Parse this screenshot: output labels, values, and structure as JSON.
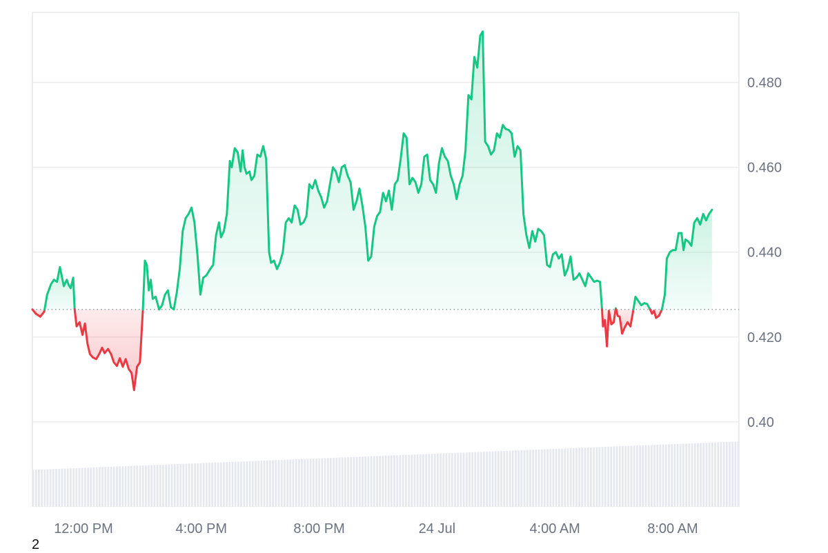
{
  "footer_note": "2",
  "colors": {
    "up_line": "#16c784",
    "down_line": "#ea3943",
    "up_fill": "#16c784",
    "down_fill": "#ea3943",
    "grid": "#ececec",
    "frame": "#e5e7eb",
    "baseline": "#8a8f98",
    "volume": "#e5e9ef",
    "tick_text": "#6b7280"
  },
  "chart_data": {
    "type": "area",
    "title": "",
    "xlabel": "",
    "ylabel": "",
    "baseline_value": 0.4265,
    "y_axis": {
      "range": [
        0.38,
        0.4965
      ],
      "ticks": [
        {
          "value": 0.48,
          "label": "0.480"
        },
        {
          "value": 0.46,
          "label": "0.460"
        },
        {
          "value": 0.44,
          "label": "0.440"
        },
        {
          "value": 0.42,
          "label": "0.420"
        },
        {
          "value": 0.4,
          "label": "0.40"
        }
      ]
    },
    "x_axis": {
      "range": [
        "23 Jul 10:56 AM",
        "24 Jul 10:55 AM"
      ],
      "range_minutes": [
        -104,
        1335
      ],
      "ticks": [
        {
          "minutes": 0,
          "label": "12:00 PM"
        },
        {
          "minutes": 240,
          "label": "4:00 PM"
        },
        {
          "minutes": 480,
          "label": "8:00 PM"
        },
        {
          "minutes": 720,
          "label": "24 Jul"
        },
        {
          "minutes": 960,
          "label": "4:00 AM"
        },
        {
          "minutes": 1200,
          "label": "8:00 AM"
        }
      ]
    },
    "grid": "horizontal",
    "legend": "none",
    "series": [
      {
        "points": [
          [
            -104,
            0.4265
          ],
          [
            -97,
            0.4255
          ],
          [
            -88,
            0.4248
          ],
          [
            -80,
            0.426
          ],
          [
            -74,
            0.43
          ],
          [
            -66,
            0.4325
          ],
          [
            -60,
            0.4335
          ],
          [
            -54,
            0.433
          ],
          [
            -48,
            0.4365
          ],
          [
            -40,
            0.432
          ],
          [
            -34,
            0.4335
          ],
          [
            -30,
            0.4322
          ],
          [
            -26,
            0.4315
          ],
          [
            -21,
            0.434
          ],
          [
            -18,
            0.4265
          ],
          [
            -14,
            0.4225
          ],
          [
            -8,
            0.4235
          ],
          [
            -2,
            0.4205
          ],
          [
            3,
            0.4232
          ],
          [
            8,
            0.4185
          ],
          [
            13,
            0.416
          ],
          [
            19,
            0.4152
          ],
          [
            26,
            0.4148
          ],
          [
            32,
            0.416
          ],
          [
            38,
            0.4175
          ],
          [
            43,
            0.4162
          ],
          [
            50,
            0.4172
          ],
          [
            56,
            0.416
          ],
          [
            62,
            0.414
          ],
          [
            68,
            0.4132
          ],
          [
            74,
            0.415
          ],
          [
            80,
            0.413
          ],
          [
            86,
            0.4148
          ],
          [
            92,
            0.4125
          ],
          [
            98,
            0.4115
          ],
          [
            103,
            0.4075
          ],
          [
            109,
            0.413
          ],
          [
            115,
            0.414
          ],
          [
            121,
            0.4265
          ],
          [
            125,
            0.438
          ],
          [
            129,
            0.437
          ],
          [
            133,
            0.431
          ],
          [
            137,
            0.4335
          ],
          [
            141,
            0.429
          ],
          [
            147,
            0.4295
          ],
          [
            154,
            0.4265
          ],
          [
            160,
            0.4275
          ],
          [
            166,
            0.43
          ],
          [
            172,
            0.431
          ],
          [
            178,
            0.427
          ],
          [
            184,
            0.4265
          ],
          [
            190,
            0.4305
          ],
          [
            196,
            0.436
          ],
          [
            202,
            0.445
          ],
          [
            208,
            0.448
          ],
          [
            214,
            0.449
          ],
          [
            220,
            0.4505
          ],
          [
            226,
            0.447
          ],
          [
            232,
            0.4395
          ],
          [
            238,
            0.43
          ],
          [
            244,
            0.434
          ],
          [
            250,
            0.4345
          ],
          [
            258,
            0.436
          ],
          [
            264,
            0.437
          ],
          [
            270,
            0.444
          ],
          [
            276,
            0.447
          ],
          [
            280,
            0.4435
          ],
          [
            286,
            0.445
          ],
          [
            292,
            0.449
          ],
          [
            298,
            0.4615
          ],
          [
            302,
            0.46
          ],
          [
            308,
            0.4645
          ],
          [
            314,
            0.4635
          ],
          [
            320,
            0.459
          ],
          [
            324,
            0.464
          ],
          [
            328,
            0.46
          ],
          [
            332,
            0.4585
          ],
          [
            338,
            0.459
          ],
          [
            342,
            0.457
          ],
          [
            348,
            0.458
          ],
          [
            354,
            0.463
          ],
          [
            360,
            0.4625
          ],
          [
            366,
            0.465
          ],
          [
            372,
            0.462
          ],
          [
            378,
            0.44
          ],
          [
            382,
            0.4375
          ],
          [
            388,
            0.438
          ],
          [
            394,
            0.436
          ],
          [
            400,
            0.4375
          ],
          [
            406,
            0.44
          ],
          [
            412,
            0.447
          ],
          [
            418,
            0.448
          ],
          [
            424,
            0.447
          ],
          [
            430,
            0.451
          ],
          [
            436,
            0.45
          ],
          [
            442,
            0.4465
          ],
          [
            448,
            0.447
          ],
          [
            454,
            0.4485
          ],
          [
            460,
            0.456
          ],
          [
            466,
            0.455
          ],
          [
            472,
            0.457
          ],
          [
            478,
            0.4545
          ],
          [
            484,
            0.453
          ],
          [
            490,
            0.4505
          ],
          [
            496,
            0.452
          ],
          [
            502,
            0.456
          ],
          [
            508,
            0.46
          ],
          [
            514,
            0.459
          ],
          [
            520,
            0.4565
          ],
          [
            526,
            0.46
          ],
          [
            532,
            0.4605
          ],
          [
            538,
            0.458
          ],
          [
            544,
            0.4565
          ],
          [
            550,
            0.45
          ],
          [
            556,
            0.452
          ],
          [
            562,
            0.455
          ],
          [
            568,
            0.451
          ],
          [
            574,
            0.446
          ],
          [
            580,
            0.438
          ],
          [
            586,
            0.439
          ],
          [
            592,
            0.446
          ],
          [
            598,
            0.4485
          ],
          [
            604,
            0.4495
          ],
          [
            610,
            0.454
          ],
          [
            616,
            0.452
          ],
          [
            622,
            0.4545
          ],
          [
            628,
            0.45
          ],
          [
            634,
            0.456
          ],
          [
            640,
            0.457
          ],
          [
            646,
            0.462
          ],
          [
            652,
            0.468
          ],
          [
            658,
            0.467
          ],
          [
            664,
            0.456
          ],
          [
            670,
            0.4575
          ],
          [
            676,
            0.4565
          ],
          [
            682,
            0.454
          ],
          [
            688,
            0.456
          ],
          [
            694,
            0.4625
          ],
          [
            700,
            0.463
          ],
          [
            706,
            0.457
          ],
          [
            712,
            0.456
          ],
          [
            718,
            0.454
          ],
          [
            724,
            0.461
          ],
          [
            730,
            0.4645
          ],
          [
            736,
            0.4625
          ],
          [
            742,
            0.4615
          ],
          [
            748,
            0.458
          ],
          [
            754,
            0.456
          ],
          [
            760,
            0.4525
          ],
          [
            766,
            0.456
          ],
          [
            772,
            0.458
          ],
          [
            778,
            0.464
          ],
          [
            784,
            0.477
          ],
          [
            790,
            0.476
          ],
          [
            796,
            0.486
          ],
          [
            802,
            0.4835
          ],
          [
            808,
            0.491
          ],
          [
            813,
            0.492
          ],
          [
            818,
            0.466
          ],
          [
            824,
            0.465
          ],
          [
            830,
            0.463
          ],
          [
            836,
            0.464
          ],
          [
            842,
            0.468
          ],
          [
            848,
            0.467
          ],
          [
            854,
            0.47
          ],
          [
            860,
            0.469
          ],
          [
            866,
            0.4688
          ],
          [
            872,
            0.468
          ],
          [
            878,
            0.4625
          ],
          [
            884,
            0.465
          ],
          [
            890,
            0.464
          ],
          [
            896,
            0.449
          ],
          [
            902,
            0.444
          ],
          [
            908,
            0.441
          ],
          [
            914,
            0.445
          ],
          [
            920,
            0.4425
          ],
          [
            926,
            0.4455
          ],
          [
            932,
            0.445
          ],
          [
            938,
            0.444
          ],
          [
            944,
            0.437
          ],
          [
            950,
            0.4365
          ],
          [
            956,
            0.4395
          ],
          [
            962,
            0.44
          ],
          [
            968,
            0.4385
          ],
          [
            974,
            0.4395
          ],
          [
            980,
            0.4345
          ],
          [
            986,
            0.436
          ],
          [
            992,
            0.439
          ],
          [
            998,
            0.4335
          ],
          [
            1004,
            0.434
          ],
          [
            1010,
            0.435
          ],
          [
            1016,
            0.4335
          ],
          [
            1022,
            0.432
          ],
          [
            1028,
            0.435
          ],
          [
            1034,
            0.434
          ],
          [
            1040,
            0.433
          ],
          [
            1046,
            0.4333
          ],
          [
            1052,
            0.433
          ],
          [
            1056,
            0.4265
          ],
          [
            1058,
            0.4225
          ],
          [
            1062,
            0.424
          ],
          [
            1066,
            0.4178
          ],
          [
            1070,
            0.4262
          ],
          [
            1075,
            0.423
          ],
          [
            1080,
            0.4235
          ],
          [
            1084,
            0.4268
          ],
          [
            1088,
            0.425
          ],
          [
            1092,
            0.4248
          ],
          [
            1097,
            0.4208
          ],
          [
            1102,
            0.4222
          ],
          [
            1108,
            0.4235
          ],
          [
            1114,
            0.4225
          ],
          [
            1120,
            0.4265
          ],
          [
            1124,
            0.4295
          ],
          [
            1130,
            0.4285
          ],
          [
            1136,
            0.4275
          ],
          [
            1142,
            0.428
          ],
          [
            1148,
            0.4278
          ],
          [
            1154,
            0.4265
          ],
          [
            1158,
            0.4255
          ],
          [
            1162,
            0.4262
          ],
          [
            1166,
            0.4245
          ],
          [
            1172,
            0.425
          ],
          [
            1178,
            0.4265
          ],
          [
            1184,
            0.43
          ],
          [
            1188,
            0.4385
          ],
          [
            1194,
            0.44
          ],
          [
            1200,
            0.4405
          ],
          [
            1206,
            0.4405
          ],
          [
            1212,
            0.4445
          ],
          [
            1218,
            0.4445
          ],
          [
            1222,
            0.4405
          ],
          [
            1226,
            0.443
          ],
          [
            1232,
            0.4425
          ],
          [
            1238,
            0.4415
          ],
          [
            1244,
            0.447
          ],
          [
            1250,
            0.448
          ],
          [
            1256,
            0.4465
          ],
          [
            1262,
            0.449
          ],
          [
            1268,
            0.4475
          ],
          [
            1274,
            0.449
          ],
          [
            1280,
            0.45
          ]
        ]
      }
    ],
    "volume": {
      "note": "relative bar heights in arbitrary units, 0..1",
      "start": 0.52,
      "end": 0.92
    }
  }
}
